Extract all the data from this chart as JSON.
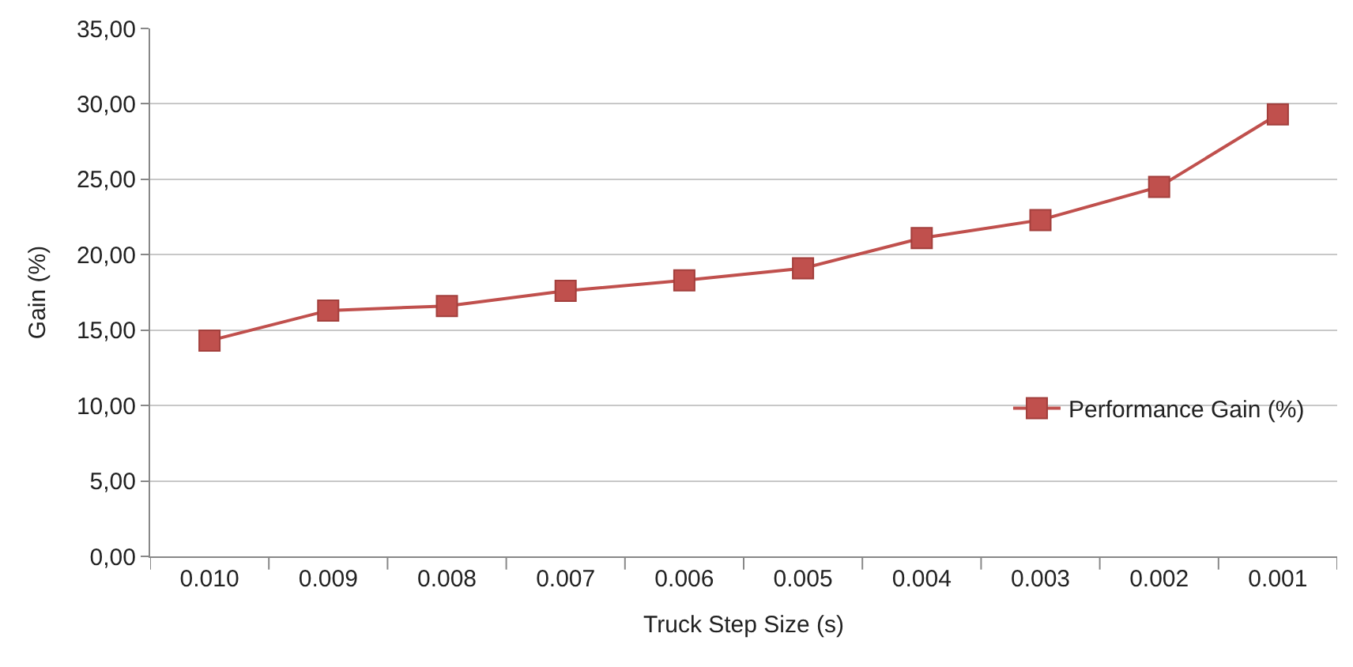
{
  "chart_data": {
    "type": "line",
    "xlabel": "Truck Step Size (s)",
    "ylabel": "Gain (%)",
    "categories": [
      "0.010",
      "0.009",
      "0.008",
      "0.007",
      "0.006",
      "0.005",
      "0.004",
      "0.003",
      "0.002",
      "0.001"
    ],
    "series": [
      {
        "name": "Performance Gain (%)",
        "color": "#c0504d",
        "values": [
          14.3,
          16.3,
          16.6,
          17.6,
          18.3,
          19.1,
          21.1,
          22.3,
          24.5,
          29.3
        ]
      }
    ],
    "ylim": [
      0,
      35
    ],
    "yticks": [
      {
        "value": 0,
        "label": "0,00"
      },
      {
        "value": 5,
        "label": "5,00"
      },
      {
        "value": 10,
        "label": "10,00"
      },
      {
        "value": 15,
        "label": "15,00"
      },
      {
        "value": 20,
        "label": "20,00"
      },
      {
        "value": 25,
        "label": "25,00"
      },
      {
        "value": 30,
        "label": "30,00"
      },
      {
        "value": 35,
        "label": "35,00"
      }
    ],
    "grid": "y",
    "legend": "right",
    "marker": "square",
    "line_style": "solid"
  }
}
